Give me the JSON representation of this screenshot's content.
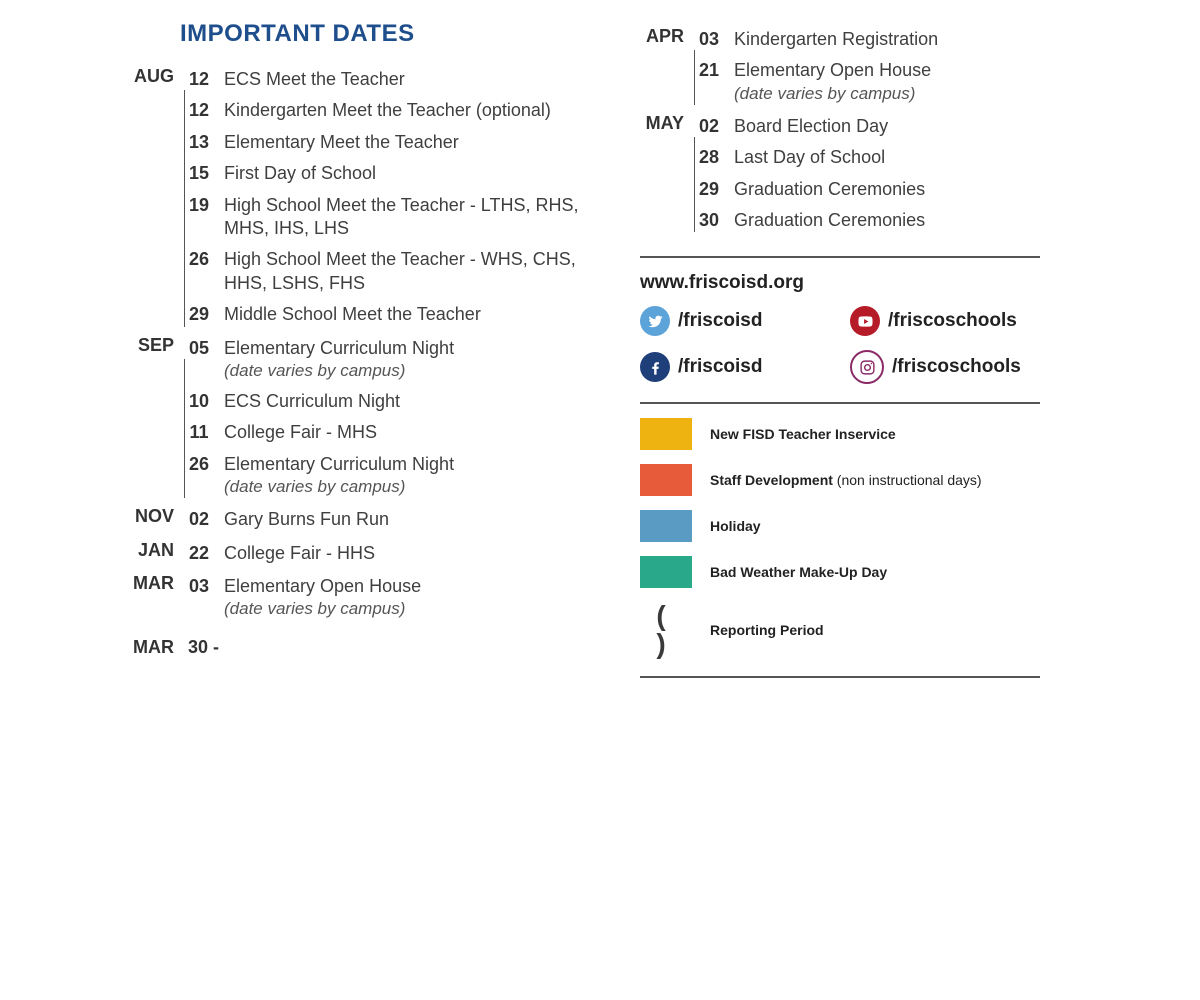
{
  "title": "IMPORTANT DATES",
  "colors": {
    "title": "#1f4e8c",
    "twitter": "#5ca3d9",
    "facebook": "#1f3f7a",
    "youtube": "#b61b28",
    "instagram": "#8a2a67"
  },
  "left_months": [
    {
      "month": "AUG",
      "events": [
        {
          "day": "12",
          "text": "ECS Meet the Teacher"
        },
        {
          "day": "12",
          "text": "Kindergarten Meet the Teacher (optional)"
        },
        {
          "day": "13",
          "text": "Elementary Meet the Teacher"
        },
        {
          "day": "15",
          "text": "First Day of School"
        },
        {
          "day": "19",
          "text": "High School Meet the Teacher - LTHS, RHS, MHS, IHS, LHS"
        },
        {
          "day": "26",
          "text": "High School Meet the Teacher - WHS, CHS, HHS, LSHS, FHS"
        },
        {
          "day": "29",
          "text": "Middle School Meet the Teacher"
        }
      ]
    },
    {
      "month": "SEP",
      "events": [
        {
          "day": "05",
          "text": "Elementary Curriculum Night",
          "note": "(date varies by campus)"
        },
        {
          "day": "10",
          "text": "ECS Curriculum Night"
        },
        {
          "day": "11",
          "text": "College Fair - MHS"
        },
        {
          "day": "26",
          "text": "Elementary Curriculum Night",
          "note": "(date varies by campus)"
        }
      ]
    },
    {
      "month": "NOV",
      "single": true,
      "events": [
        {
          "day": "02",
          "text": "Gary Burns Fun Run"
        }
      ]
    },
    {
      "month": "JAN",
      "single": true,
      "events": [
        {
          "day": "22",
          "text": "College Fair - HHS"
        }
      ]
    },
    {
      "month": "MAR",
      "single": true,
      "events": [
        {
          "day": "03",
          "text": "Elementary Open House",
          "note": "(date varies by campus)"
        }
      ]
    }
  ],
  "left_tail": {
    "month": "MAR",
    "day": "30 -"
  },
  "right_months": [
    {
      "month": "APR",
      "events": [
        {
          "day": "03",
          "text": "Kindergarten Registration"
        },
        {
          "day": "21",
          "text": "Elementary Open House",
          "note": "(date varies by campus)"
        }
      ]
    },
    {
      "month": "MAY",
      "events": [
        {
          "day": "02",
          "text": "Board Election Day"
        },
        {
          "day": "28",
          "text": "Last Day of School"
        },
        {
          "day": "29",
          "text": "Graduation Ceremonies"
        },
        {
          "day": "30",
          "text": "Graduation Ceremonies"
        }
      ]
    }
  ],
  "site_url": "www.friscoisd.org",
  "socials": [
    {
      "name": "twitter",
      "handle": "/friscoisd"
    },
    {
      "name": "youtube",
      "handle": "/friscoschools"
    },
    {
      "name": "facebook",
      "handle": "/friscoisd"
    },
    {
      "name": "instagram",
      "handle": "/friscoschools"
    }
  ],
  "legend": [
    {
      "color": "#eeb211",
      "label": "New FISD Teacher Inservice"
    },
    {
      "color": "#e75b3a",
      "label": "Staff Development",
      "sub": " (non instructional days)"
    },
    {
      "color": "#5a9bc4",
      "label": "Holiday"
    },
    {
      "color": "#2aa98a",
      "label": "Bad Weather Make-Up Day"
    },
    {
      "symbol": "( )",
      "label": "Reporting Period"
    }
  ]
}
